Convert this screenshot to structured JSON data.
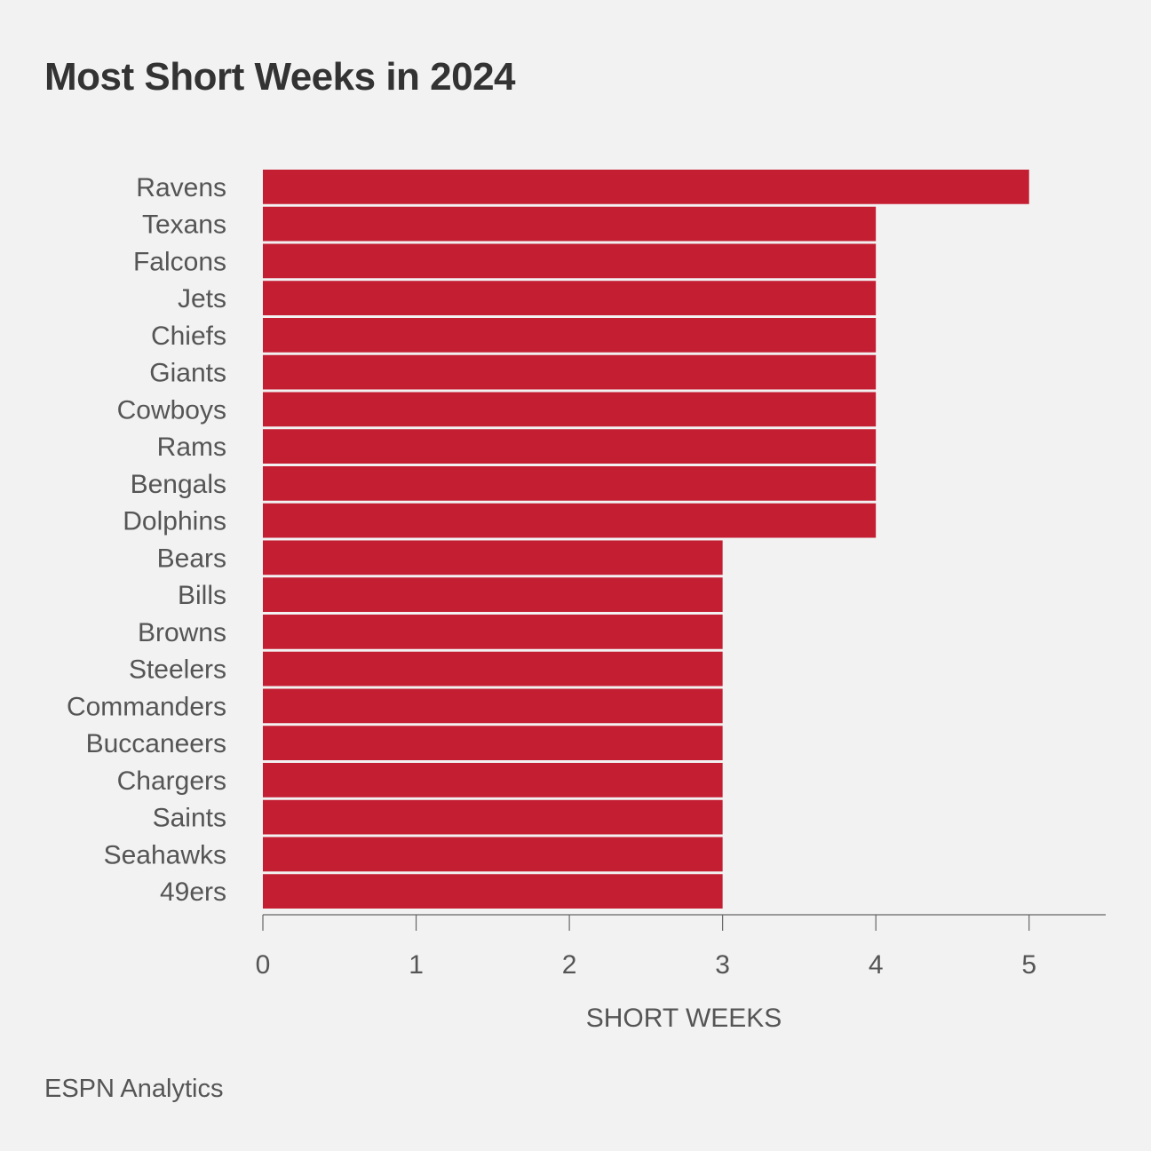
{
  "chart_data": {
    "type": "bar",
    "orientation": "horizontal",
    "title": "Most Short Weeks in 2024",
    "xlabel": "SHORT WEEKS",
    "ylabel": "",
    "categories": [
      "Ravens",
      "Texans",
      "Falcons",
      "Jets",
      "Chiefs",
      "Giants",
      "Cowboys",
      "Rams",
      "Bengals",
      "Dolphins",
      "Bears",
      "Bills",
      "Browns",
      "Steelers",
      "Commanders",
      "Buccaneers",
      "Chargers",
      "Saints",
      "Seahawks",
      "49ers"
    ],
    "values": [
      5,
      4,
      4,
      4,
      4,
      4,
      4,
      4,
      4,
      4,
      3,
      3,
      3,
      3,
      3,
      3,
      3,
      3,
      3,
      3
    ],
    "xlim": [
      0,
      5.5
    ],
    "xticks": [
      "0",
      "1",
      "2",
      "3",
      "4",
      "5"
    ],
    "grid": false,
    "bar_color": "#c41e33",
    "source": "ESPN Analytics"
  }
}
